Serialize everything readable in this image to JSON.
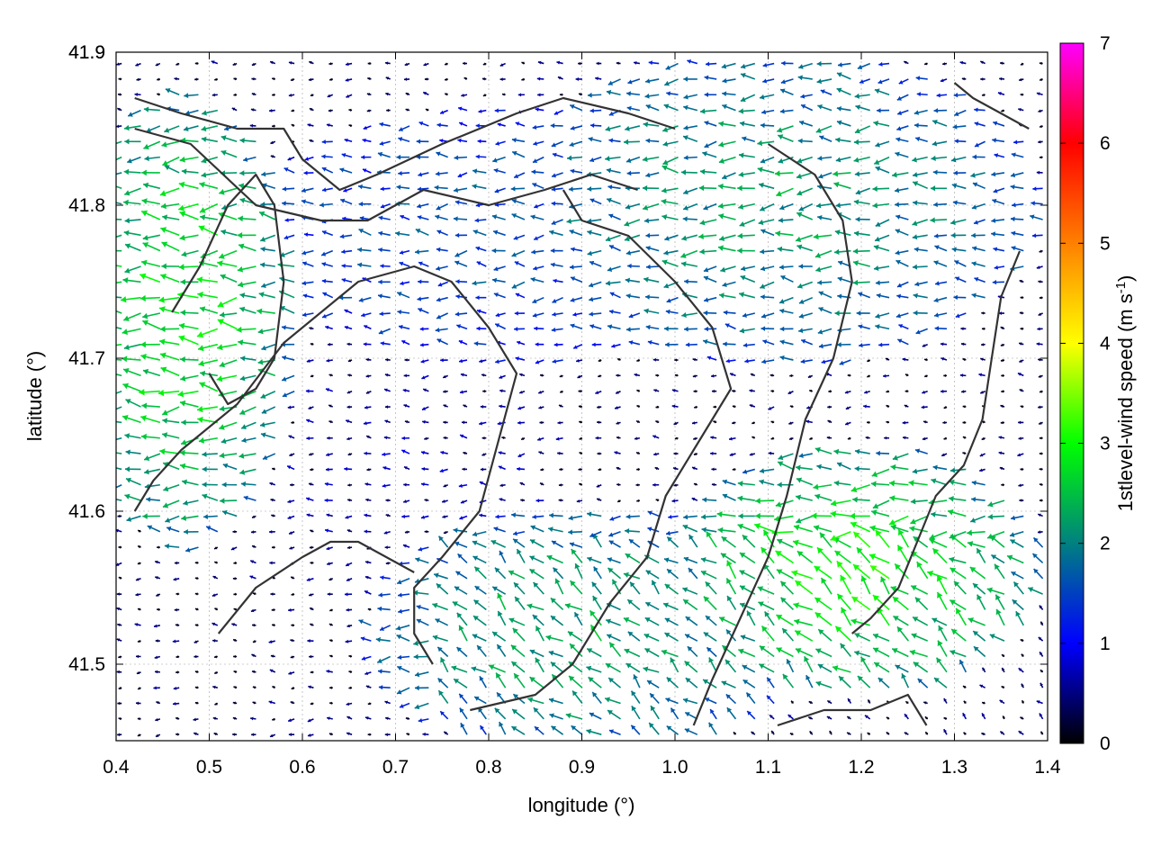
{
  "chart_data": {
    "type": "vector-field",
    "xlabel": "longitude (°)",
    "ylabel": "latitude (°)",
    "xlim": [
      0.4,
      1.4
    ],
    "ylim": [
      41.45,
      41.9
    ],
    "xticks": [
      "0.4",
      "0.5",
      "0.6",
      "0.7",
      "0.8",
      "0.9",
      "1.0",
      "1.1",
      "1.2",
      "1.3",
      "1.4"
    ],
    "yticks": [
      "41.5",
      "41.6",
      "41.7",
      "41.8",
      "41.9"
    ],
    "grid": true,
    "colorbar": {
      "label_main": "1stlevel-wind speed (m s",
      "label_sup": "-1",
      "label_close": ")",
      "range": [
        0,
        7
      ],
      "ticks": [
        "0",
        "1",
        "2",
        "3",
        "4",
        "5",
        "6",
        "7"
      ],
      "palette": [
        "#000000",
        "#0000ff",
        "#008080",
        "#00ff00",
        "#ffff00",
        "#ff8000",
        "#ff0000",
        "#ff00ff"
      ]
    },
    "wind_direction_dominant": "east-to-west",
    "speed_regions": [
      {
        "region": "north-west",
        "lon": [
          0.4,
          0.55
        ],
        "lat": [
          41.6,
          41.85
        ],
        "speed": 2.8
      },
      {
        "region": "north-east",
        "lon": [
          0.88,
          1.35
        ],
        "lat": [
          41.72,
          41.88
        ],
        "speed": 2.2
      },
      {
        "region": "central",
        "lon": [
          0.58,
          1.05
        ],
        "lat": [
          41.72,
          41.84
        ],
        "speed": 1.6
      },
      {
        "region": "south-east",
        "lon": [
          1.05,
          1.35
        ],
        "lat": [
          41.5,
          41.62
        ],
        "speed": 2.9
      },
      {
        "region": "south",
        "lon": [
          0.72,
          1.1
        ],
        "lat": [
          41.46,
          41.58
        ],
        "speed": 2.3
      },
      {
        "region": "valley",
        "lon": [
          0.6,
          0.85
        ],
        "lat": [
          41.55,
          41.7
        ],
        "speed": 0.6
      }
    ],
    "contour_lines": [
      [
        [
          0.42,
          41.6
        ],
        [
          0.44,
          41.62
        ],
        [
          0.47,
          41.64
        ],
        [
          0.53,
          41.67
        ],
        [
          0.58,
          41.71
        ],
        [
          0.62,
          41.73
        ],
        [
          0.66,
          41.75
        ],
        [
          0.72,
          41.76
        ],
        [
          0.76,
          41.75
        ],
        [
          0.8,
          41.72
        ],
        [
          0.83,
          41.69
        ],
        [
          0.79,
          41.6
        ],
        [
          0.75,
          41.57
        ],
        [
          0.72,
          41.55
        ],
        [
          0.72,
          41.52
        ],
        [
          0.74,
          41.5
        ]
      ],
      [
        [
          0.51,
          41.52
        ],
        [
          0.55,
          41.55
        ],
        [
          0.6,
          41.57
        ],
        [
          0.63,
          41.58
        ],
        [
          0.66,
          41.58
        ],
        [
          0.72,
          41.56
        ]
      ],
      [
        [
          0.42,
          41.87
        ],
        [
          0.47,
          41.86
        ],
        [
          0.53,
          41.85
        ],
        [
          0.58,
          41.85
        ],
        [
          0.6,
          41.83
        ],
        [
          0.64,
          41.81
        ],
        [
          0.68,
          41.82
        ],
        [
          0.75,
          41.84
        ],
        [
          0.83,
          41.86
        ],
        [
          0.88,
          41.87
        ],
        [
          0.95,
          41.86
        ],
        [
          1.0,
          41.85
        ]
      ],
      [
        [
          0.42,
          41.85
        ],
        [
          0.48,
          41.84
        ],
        [
          0.55,
          41.8
        ],
        [
          0.62,
          41.79
        ],
        [
          0.67,
          41.79
        ],
        [
          0.73,
          41.81
        ],
        [
          0.8,
          41.8
        ],
        [
          0.86,
          41.81
        ],
        [
          0.91,
          41.82
        ],
        [
          0.96,
          41.81
        ]
      ],
      [
        [
          0.46,
          41.73
        ],
        [
          0.49,
          41.76
        ],
        [
          0.52,
          41.8
        ],
        [
          0.55,
          41.82
        ],
        [
          0.57,
          41.8
        ],
        [
          0.58,
          41.75
        ],
        [
          0.57,
          41.7
        ],
        [
          0.55,
          41.68
        ],
        [
          0.52,
          41.67
        ],
        [
          0.5,
          41.69
        ]
      ],
      [
        [
          0.88,
          41.81
        ],
        [
          0.9,
          41.79
        ],
        [
          0.95,
          41.78
        ],
        [
          1.0,
          41.75
        ],
        [
          1.04,
          41.72
        ],
        [
          1.06,
          41.68
        ],
        [
          1.02,
          41.64
        ],
        [
          0.99,
          41.61
        ],
        [
          0.97,
          41.57
        ],
        [
          0.93,
          41.54
        ],
        [
          0.89,
          41.5
        ],
        [
          0.85,
          41.48
        ],
        [
          0.78,
          41.47
        ]
      ],
      [
        [
          1.1,
          41.84
        ],
        [
          1.15,
          41.82
        ],
        [
          1.18,
          41.79
        ],
        [
          1.19,
          41.75
        ],
        [
          1.17,
          41.7
        ],
        [
          1.14,
          41.66
        ],
        [
          1.12,
          41.61
        ],
        [
          1.1,
          41.57
        ],
        [
          1.07,
          41.53
        ],
        [
          1.04,
          41.49
        ],
        [
          1.02,
          41.46
        ]
      ],
      [
        [
          1.37,
          41.77
        ],
        [
          1.35,
          41.74
        ],
        [
          1.34,
          41.7
        ],
        [
          1.33,
          41.66
        ],
        [
          1.31,
          41.63
        ],
        [
          1.28,
          41.61
        ],
        [
          1.26,
          41.58
        ],
        [
          1.24,
          41.55
        ],
        [
          1.21,
          41.53
        ],
        [
          1.19,
          41.52
        ]
      ],
      [
        [
          1.11,
          41.46
        ],
        [
          1.16,
          41.47
        ],
        [
          1.21,
          41.47
        ],
        [
          1.25,
          41.48
        ],
        [
          1.27,
          41.46
        ]
      ],
      [
        [
          1.3,
          41.88
        ],
        [
          1.32,
          41.87
        ],
        [
          1.35,
          41.86
        ],
        [
          1.38,
          41.85
        ]
      ]
    ]
  }
}
